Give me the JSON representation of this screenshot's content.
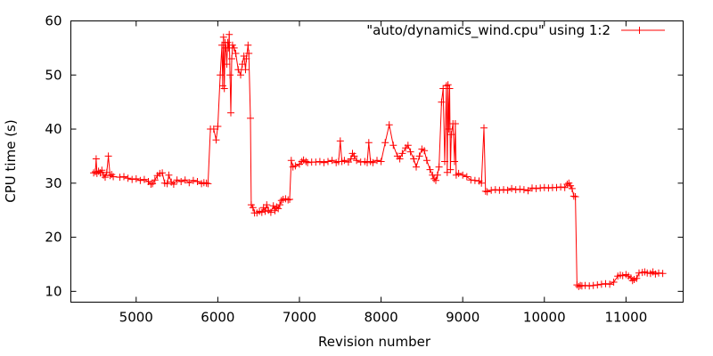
{
  "chart_data": {
    "type": "line",
    "title": "",
    "xlabel": "Revision number",
    "ylabel": "CPU time (s)",
    "xlim": [
      4200,
      11700
    ],
    "ylim": [
      8,
      60
    ],
    "x_ticks": [
      5000,
      6000,
      7000,
      8000,
      9000,
      10000,
      11000
    ],
    "y_ticks": [
      10,
      20,
      30,
      40,
      50,
      60
    ],
    "x_tick_labels": [
      "5000",
      "6000",
      "7000",
      "8000",
      "9000",
      "10000",
      "11000"
    ],
    "y_tick_labels": [
      "10",
      "20",
      "30",
      "40",
      "50",
      "60"
    ],
    "grid": false,
    "legend_position": "top-right",
    "series": [
      {
        "name": "\"auto/dynamics_wind.cpu\" using 1:2",
        "color": "#ff0000",
        "marker": "plus",
        "points": [
          [
            4480,
            31.9
          ],
          [
            4500,
            32.1
          ],
          [
            4510,
            34.5
          ],
          [
            4520,
            31.8
          ],
          [
            4540,
            32.2
          ],
          [
            4560,
            31.9
          ],
          [
            4580,
            32.4
          ],
          [
            4600,
            31.5
          ],
          [
            4620,
            31.1
          ],
          [
            4640,
            32.0
          ],
          [
            4660,
            35.0
          ],
          [
            4680,
            31.4
          ],
          [
            4700,
            31.6
          ],
          [
            4720,
            31.2
          ],
          [
            4800,
            31.1
          ],
          [
            4850,
            31.2
          ],
          [
            4900,
            30.9
          ],
          [
            4950,
            30.7
          ],
          [
            5000,
            30.8
          ],
          [
            5050,
            30.5
          ],
          [
            5100,
            30.7
          ],
          [
            5150,
            30.3
          ],
          [
            5180,
            29.8
          ],
          [
            5200,
            29.9
          ],
          [
            5230,
            30.6
          ],
          [
            5260,
            31.4
          ],
          [
            5290,
            31.8
          ],
          [
            5320,
            31.9
          ],
          [
            5350,
            30.0
          ],
          [
            5380,
            29.9
          ],
          [
            5400,
            31.5
          ],
          [
            5430,
            30.2
          ],
          [
            5460,
            29.8
          ],
          [
            5500,
            30.6
          ],
          [
            5550,
            30.3
          ],
          [
            5600,
            30.6
          ],
          [
            5650,
            30.1
          ],
          [
            5700,
            30.5
          ],
          [
            5750,
            30.3
          ],
          [
            5800,
            29.9
          ],
          [
            5830,
            30.1
          ],
          [
            5860,
            30.0
          ],
          [
            5880,
            29.9
          ],
          [
            5910,
            40.0
          ],
          [
            5950,
            40.0
          ],
          [
            5980,
            38.0
          ],
          [
            6000,
            40.5
          ],
          [
            6030,
            50.0
          ],
          [
            6050,
            55.5
          ],
          [
            6060,
            48.0
          ],
          [
            6070,
            57.0
          ],
          [
            6080,
            47.5
          ],
          [
            6090,
            56.0
          ],
          [
            6100,
            55.0
          ],
          [
            6110,
            52.0
          ],
          [
            6120,
            56.0
          ],
          [
            6130,
            55.0
          ],
          [
            6140,
            57.5
          ],
          [
            6150,
            50.0
          ],
          [
            6160,
            43.0
          ],
          [
            6170,
            53.0
          ],
          [
            6180,
            55.5
          ],
          [
            6200,
            55.0
          ],
          [
            6220,
            54.0
          ],
          [
            6250,
            51.0
          ],
          [
            6280,
            50.0
          ],
          [
            6300,
            52.0
          ],
          [
            6320,
            53.5
          ],
          [
            6340,
            51.0
          ],
          [
            6350,
            53.0
          ],
          [
            6370,
            55.5
          ],
          [
            6380,
            54.0
          ],
          [
            6400,
            42.0
          ],
          [
            6410,
            26.0
          ],
          [
            6430,
            25.5
          ],
          [
            6450,
            24.5
          ],
          [
            6480,
            24.5
          ],
          [
            6510,
            24.8
          ],
          [
            6540,
            24.6
          ],
          [
            6560,
            25.5
          ],
          [
            6580,
            24.8
          ],
          [
            6600,
            26.0
          ],
          [
            6620,
            25.0
          ],
          [
            6650,
            24.6
          ],
          [
            6680,
            25.8
          ],
          [
            6700,
            24.9
          ],
          [
            6720,
            25.6
          ],
          [
            6740,
            25.3
          ],
          [
            6760,
            26.0
          ],
          [
            6780,
            26.8
          ],
          [
            6800,
            27.0
          ],
          [
            6830,
            27.1
          ],
          [
            6860,
            26.9
          ],
          [
            6880,
            27.0
          ],
          [
            6900,
            34.2
          ],
          [
            6920,
            33.0
          ],
          [
            6950,
            33.2
          ],
          [
            7000,
            33.5
          ],
          [
            7030,
            34.0
          ],
          [
            7050,
            34.3
          ],
          [
            7080,
            34.0
          ],
          [
            7100,
            33.8
          ],
          [
            7150,
            33.9
          ],
          [
            7200,
            33.9
          ],
          [
            7250,
            34.0
          ],
          [
            7300,
            33.8
          ],
          [
            7350,
            34.0
          ],
          [
            7400,
            34.2
          ],
          [
            7450,
            33.8
          ],
          [
            7480,
            34.0
          ],
          [
            7500,
            37.8
          ],
          [
            7520,
            34.0
          ],
          [
            7550,
            34.2
          ],
          [
            7600,
            33.9
          ],
          [
            7630,
            34.5
          ],
          [
            7650,
            35.5
          ],
          [
            7670,
            35.0
          ],
          [
            7700,
            34.2
          ],
          [
            7750,
            33.9
          ],
          [
            7800,
            34.0
          ],
          [
            7830,
            33.8
          ],
          [
            7850,
            37.5
          ],
          [
            7870,
            34.0
          ],
          [
            7900,
            33.8
          ],
          [
            7950,
            34.2
          ],
          [
            8000,
            34.0
          ],
          [
            8050,
            37.5
          ],
          [
            8100,
            40.8
          ],
          [
            8150,
            37.0
          ],
          [
            8200,
            35.0
          ],
          [
            8230,
            34.5
          ],
          [
            8260,
            35.5
          ],
          [
            8300,
            36.5
          ],
          [
            8330,
            37.0
          ],
          [
            8360,
            35.8
          ],
          [
            8400,
            34.5
          ],
          [
            8430,
            33.0
          ],
          [
            8470,
            35.0
          ],
          [
            8500,
            36.3
          ],
          [
            8530,
            36.0
          ],
          [
            8560,
            34.2
          ],
          [
            8600,
            32.5
          ],
          [
            8630,
            31.5
          ],
          [
            8650,
            30.8
          ],
          [
            8670,
            30.5
          ],
          [
            8690,
            31.5
          ],
          [
            8710,
            33.0
          ],
          [
            8740,
            45.0
          ],
          [
            8760,
            47.5
          ],
          [
            8780,
            34.0
          ],
          [
            8800,
            48.0
          ],
          [
            8810,
            32.0
          ],
          [
            8820,
            48.2
          ],
          [
            8830,
            40.0
          ],
          [
            8840,
            47.5
          ],
          [
            8850,
            32.5
          ],
          [
            8860,
            39.0
          ],
          [
            8880,
            41.0
          ],
          [
            8900,
            34.0
          ],
          [
            8910,
            41.0
          ],
          [
            8920,
            31.5
          ],
          [
            8950,
            31.8
          ],
          [
            9000,
            31.5
          ],
          [
            9050,
            31.2
          ],
          [
            9100,
            30.6
          ],
          [
            9150,
            30.5
          ],
          [
            9200,
            30.4
          ],
          [
            9230,
            30.0
          ],
          [
            9260,
            40.2
          ],
          [
            9280,
            28.5
          ],
          [
            9300,
            28.4
          ],
          [
            9350,
            28.7
          ],
          [
            9400,
            28.8
          ],
          [
            9450,
            28.7
          ],
          [
            9500,
            28.8
          ],
          [
            9550,
            28.7
          ],
          [
            9600,
            29.0
          ],
          [
            9650,
            28.8
          ],
          [
            9700,
            28.9
          ],
          [
            9750,
            28.8
          ],
          [
            9800,
            28.6
          ],
          [
            9850,
            29.1
          ],
          [
            9900,
            29.0
          ],
          [
            9950,
            29.1
          ],
          [
            10000,
            29.2
          ],
          [
            10050,
            29.1
          ],
          [
            10100,
            29.2
          ],
          [
            10150,
            29.2
          ],
          [
            10200,
            29.3
          ],
          [
            10250,
            29.2
          ],
          [
            10280,
            29.8
          ],
          [
            10300,
            30.0
          ],
          [
            10320,
            29.5
          ],
          [
            10340,
            29.0
          ],
          [
            10360,
            27.6
          ],
          [
            10380,
            27.5
          ],
          [
            10400,
            11.2
          ],
          [
            10420,
            10.9
          ],
          [
            10440,
            11.1
          ],
          [
            10460,
            11.0
          ],
          [
            10500,
            11.1
          ],
          [
            10550,
            11.0
          ],
          [
            10600,
            11.1
          ],
          [
            10650,
            11.2
          ],
          [
            10700,
            11.3
          ],
          [
            10750,
            11.4
          ],
          [
            10800,
            11.3
          ],
          [
            10850,
            11.7
          ],
          [
            10900,
            12.8
          ],
          [
            10930,
            13.0
          ],
          [
            10960,
            12.9
          ],
          [
            11000,
            13.1
          ],
          [
            11030,
            12.8
          ],
          [
            11060,
            12.5
          ],
          [
            11080,
            12.0
          ],
          [
            11100,
            12.2
          ],
          [
            11130,
            12.4
          ],
          [
            11160,
            13.4
          ],
          [
            11200,
            13.5
          ],
          [
            11230,
            13.6
          ],
          [
            11260,
            13.4
          ],
          [
            11300,
            13.3
          ],
          [
            11330,
            13.6
          ],
          [
            11360,
            13.2
          ],
          [
            11400,
            13.4
          ],
          [
            11450,
            13.3
          ]
        ]
      }
    ]
  }
}
